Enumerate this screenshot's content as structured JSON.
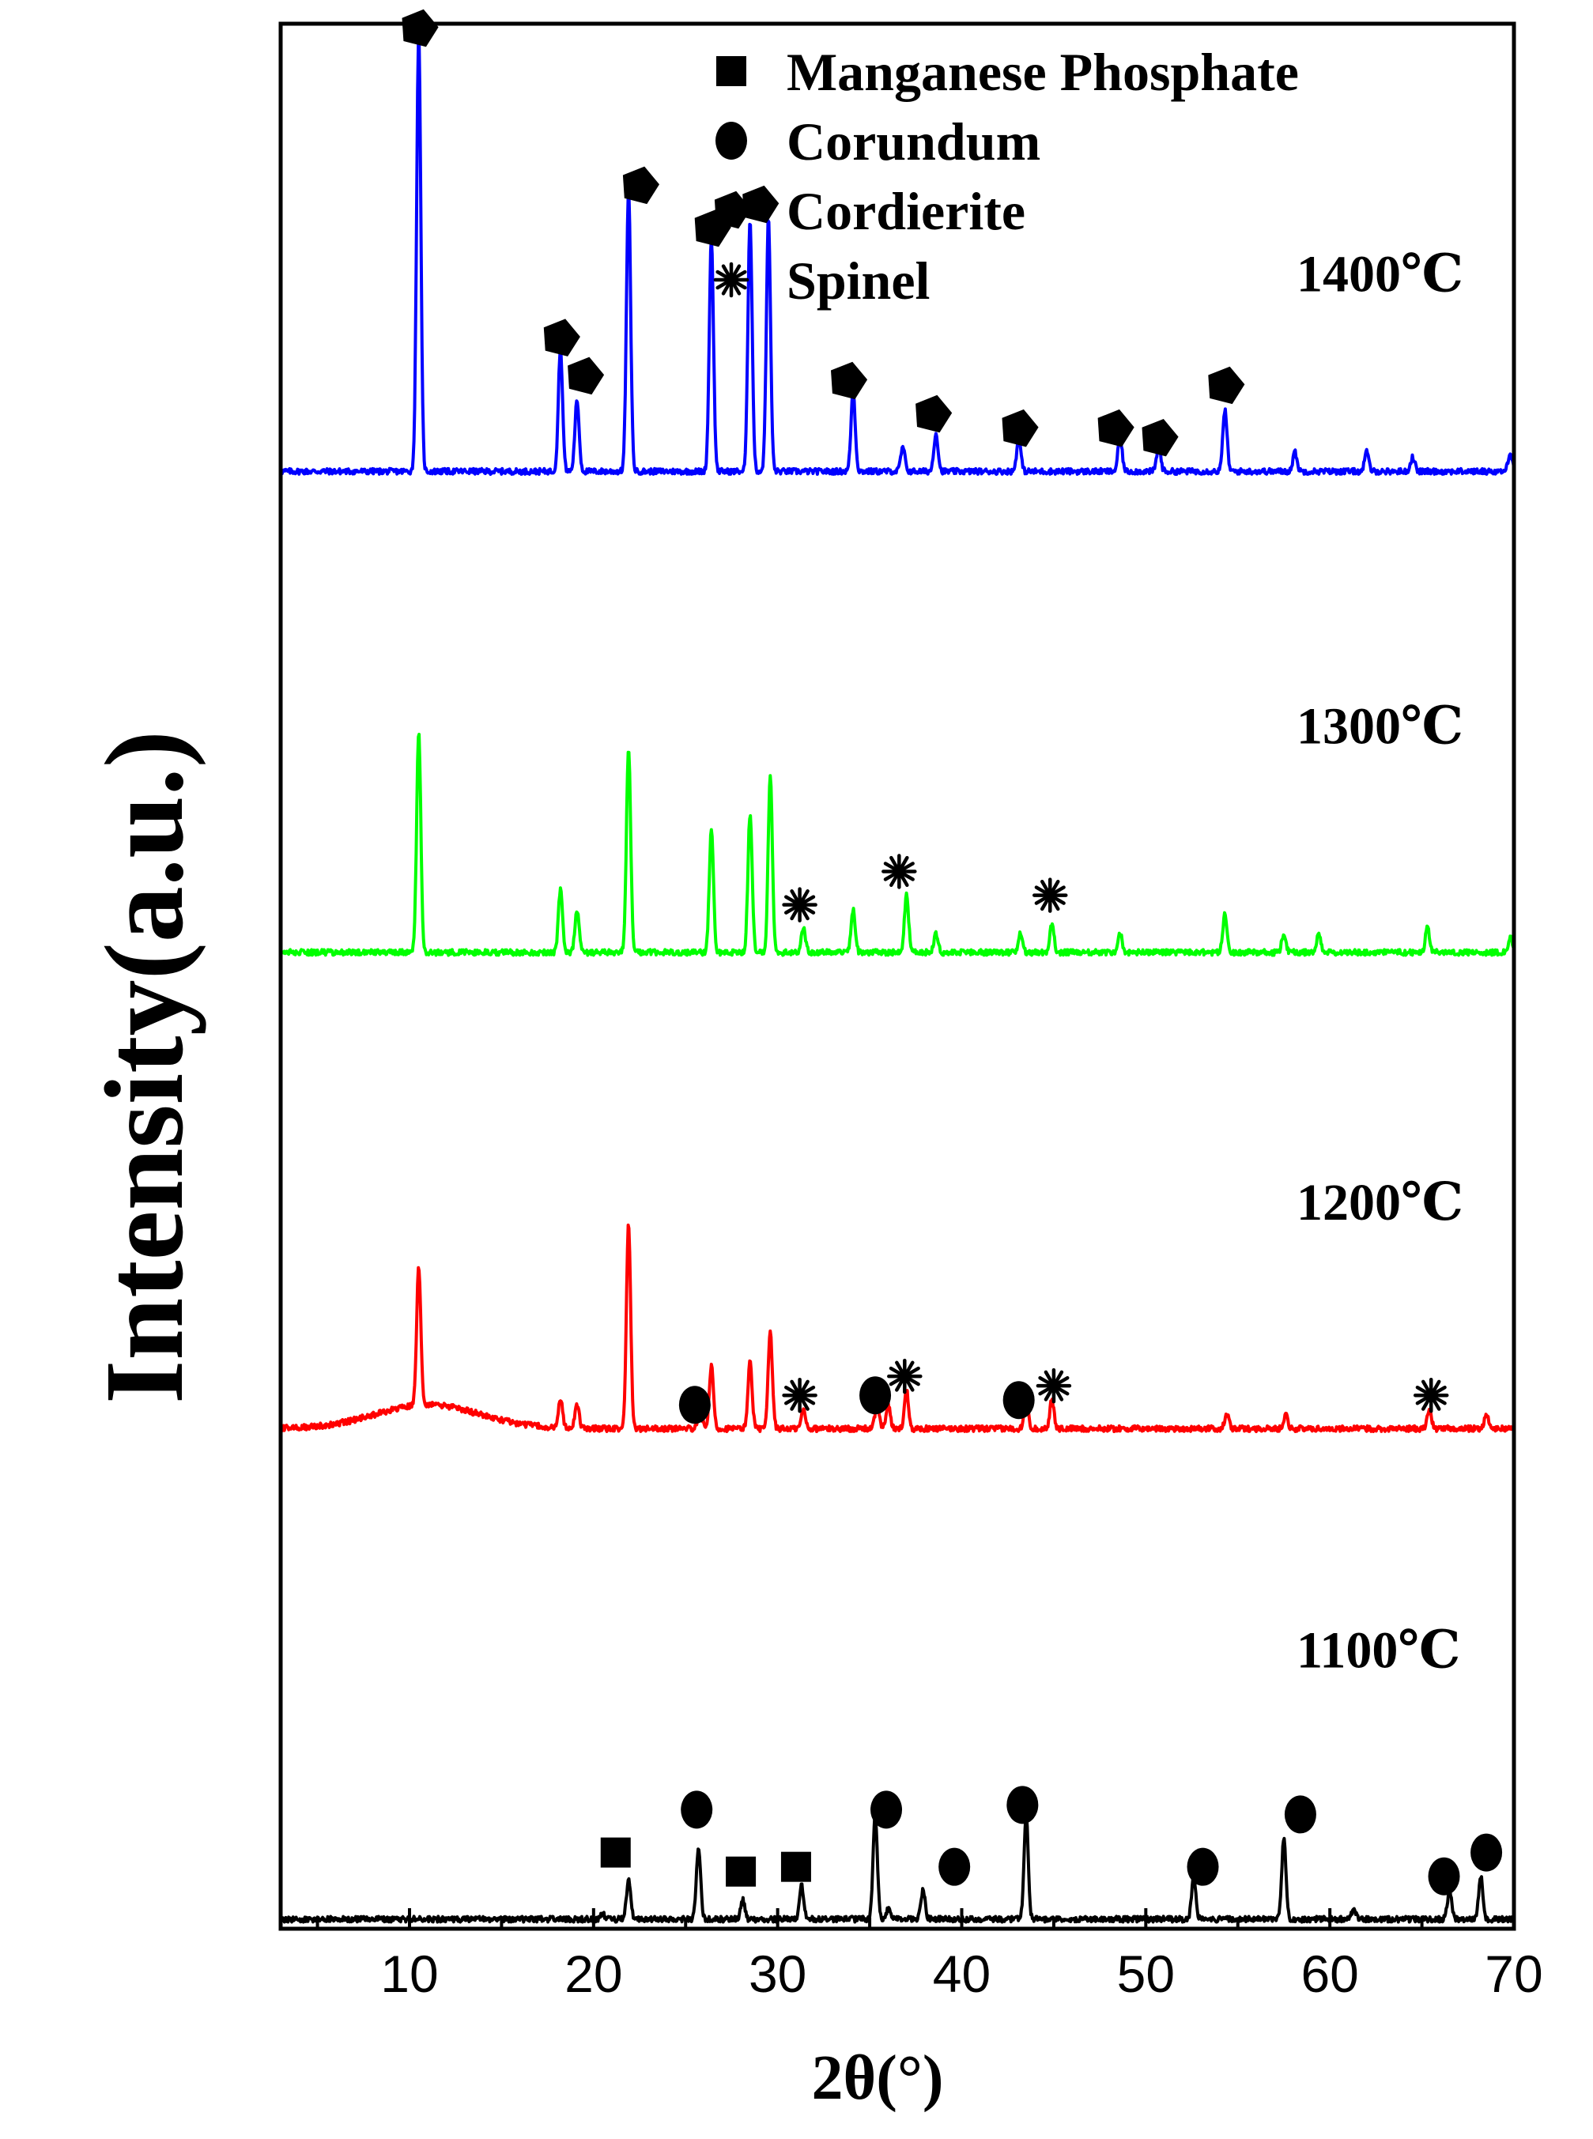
{
  "chart_data": {
    "type": "line",
    "title": "",
    "xlabel": "2θ(°)",
    "ylabel": "Intensity(a.u.)",
    "xlim": [
      3,
      70
    ],
    "x_ticks": [
      10,
      20,
      30,
      40,
      50,
      60,
      70
    ],
    "grid": false,
    "y_tick_labels": false,
    "legend": {
      "placement": "top-right",
      "entries": [
        {
          "marker": "square",
          "label": "Manganese Phosphate"
        },
        {
          "marker": "circle",
          "label": "Corundum"
        },
        {
          "marker": "pentagon",
          "label": "Cordierite"
        },
        {
          "marker": "star",
          "label": "Spinel"
        }
      ]
    },
    "series": [
      {
        "name": "1400℃",
        "color": "#0000ff",
        "baseline": 0.06,
        "hump": null,
        "peaks": [
          [
            10.5,
            0.92
          ],
          [
            18.2,
            0.26
          ],
          [
            19.1,
            0.15
          ],
          [
            21.9,
            0.59
          ],
          [
            26.4,
            0.49
          ],
          [
            28.5,
            0.53
          ],
          [
            29.5,
            0.53
          ],
          [
            34.1,
            0.17
          ],
          [
            36.8,
            0.05
          ],
          [
            38.6,
            0.08
          ],
          [
            43.1,
            0.07
          ],
          [
            48.6,
            0.07
          ],
          [
            50.7,
            0.05
          ],
          [
            54.3,
            0.13
          ],
          [
            58.1,
            0.04
          ],
          [
            62.0,
            0.04
          ],
          [
            64.5,
            0.03
          ],
          [
            69.8,
            0.04
          ]
        ],
        "markers": [
          {
            "type": "pentagon",
            "x": 10.5,
            "y": 0.99
          },
          {
            "type": "pentagon",
            "x": 18.2,
            "y": 0.34
          },
          {
            "type": "pentagon",
            "x": 19.5,
            "y": 0.26
          },
          {
            "type": "pentagon",
            "x": 22.5,
            "y": 0.66
          },
          {
            "type": "pentagon",
            "x": 26.4,
            "y": 0.57
          },
          {
            "type": "pentagon",
            "x": 29.0,
            "y": 0.62
          },
          {
            "type": "pentagon",
            "x": 33.8,
            "y": 0.25
          },
          {
            "type": "pentagon",
            "x": 38.4,
            "y": 0.18
          },
          {
            "type": "pentagon",
            "x": 43.1,
            "y": 0.15
          },
          {
            "type": "pentagon",
            "x": 48.3,
            "y": 0.15
          },
          {
            "type": "pentagon",
            "x": 50.7,
            "y": 0.13
          },
          {
            "type": "pentagon",
            "x": 54.3,
            "y": 0.24
          }
        ]
      },
      {
        "name": "1300℃",
        "color": "#00ff00",
        "baseline": 0.05,
        "hump": null,
        "peaks": [
          [
            10.5,
            0.46
          ],
          [
            18.2,
            0.13
          ],
          [
            19.1,
            0.09
          ],
          [
            21.9,
            0.43
          ],
          [
            26.4,
            0.26
          ],
          [
            28.5,
            0.29
          ],
          [
            29.6,
            0.37
          ],
          [
            31.4,
            0.05
          ],
          [
            34.1,
            0.09
          ],
          [
            37.0,
            0.12
          ],
          [
            38.6,
            0.04
          ],
          [
            43.2,
            0.04
          ],
          [
            44.9,
            0.06
          ],
          [
            48.6,
            0.04
          ],
          [
            54.3,
            0.08
          ],
          [
            57.5,
            0.04
          ],
          [
            59.4,
            0.04
          ],
          [
            65.3,
            0.05
          ],
          [
            69.8,
            0.03
          ]
        ],
        "markers": [
          {
            "type": "star",
            "x": 31.2,
            "y": 0.15
          },
          {
            "type": "star",
            "x": 36.6,
            "y": 0.22
          },
          {
            "type": "star",
            "x": 44.8,
            "y": 0.17
          }
        ]
      },
      {
        "name": "1200℃",
        "color": "#ff0000",
        "baseline": 0.05,
        "hump": {
          "center": 11.0,
          "height": 0.05,
          "width": 4.0
        },
        "peaks": [
          [
            10.5,
            0.29
          ],
          [
            18.2,
            0.06
          ],
          [
            19.1,
            0.05
          ],
          [
            21.9,
            0.43
          ],
          [
            25.8,
            0.03
          ],
          [
            26.4,
            0.13
          ],
          [
            28.5,
            0.14
          ],
          [
            29.6,
            0.2
          ],
          [
            31.4,
            0.04
          ],
          [
            35.4,
            0.05
          ],
          [
            36.0,
            0.05
          ],
          [
            37.0,
            0.08
          ],
          [
            43.5,
            0.07
          ],
          [
            44.9,
            0.06
          ],
          [
            54.4,
            0.03
          ],
          [
            57.6,
            0.03
          ],
          [
            65.4,
            0.04
          ],
          [
            68.5,
            0.03
          ]
        ],
        "markers": [
          {
            "type": "circle",
            "x": 25.5,
            "y": 0.1
          },
          {
            "type": "star",
            "x": 31.2,
            "y": 0.12
          },
          {
            "type": "circle",
            "x": 35.3,
            "y": 0.12
          },
          {
            "type": "star",
            "x": 36.9,
            "y": 0.16
          },
          {
            "type": "circle",
            "x": 43.1,
            "y": 0.11
          },
          {
            "type": "star",
            "x": 45.0,
            "y": 0.14
          },
          {
            "type": "star",
            "x": 65.5,
            "y": 0.12
          }
        ]
      },
      {
        "name": "1100℃",
        "color": "#000000",
        "baseline": 0.02,
        "hump": null,
        "peaks": [
          [
            20.5,
            0.01
          ],
          [
            21.9,
            0.08
          ],
          [
            25.7,
            0.15
          ],
          [
            28.1,
            0.04
          ],
          [
            31.3,
            0.07
          ],
          [
            35.3,
            0.22
          ],
          [
            36.0,
            0.02
          ],
          [
            37.9,
            0.06
          ],
          [
            43.5,
            0.22
          ],
          [
            52.6,
            0.09
          ],
          [
            57.5,
            0.17
          ],
          [
            61.3,
            0.02
          ],
          [
            66.5,
            0.06
          ],
          [
            68.2,
            0.09
          ]
        ],
        "markers": [
          {
            "type": "square",
            "x": 21.2,
            "y": 0.16
          },
          {
            "type": "circle",
            "x": 25.6,
            "y": 0.25
          },
          {
            "type": "square",
            "x": 28.0,
            "y": 0.12
          },
          {
            "type": "square",
            "x": 31.0,
            "y": 0.13
          },
          {
            "type": "circle",
            "x": 35.9,
            "y": 0.25
          },
          {
            "type": "circle",
            "x": 39.6,
            "y": 0.13
          },
          {
            "type": "circle",
            "x": 43.3,
            "y": 0.26
          },
          {
            "type": "circle",
            "x": 53.1,
            "y": 0.13
          },
          {
            "type": "circle",
            "x": 58.4,
            "y": 0.24
          },
          {
            "type": "circle",
            "x": 66.2,
            "y": 0.11
          },
          {
            "type": "circle",
            "x": 68.5,
            "y": 0.16
          }
        ]
      }
    ]
  }
}
